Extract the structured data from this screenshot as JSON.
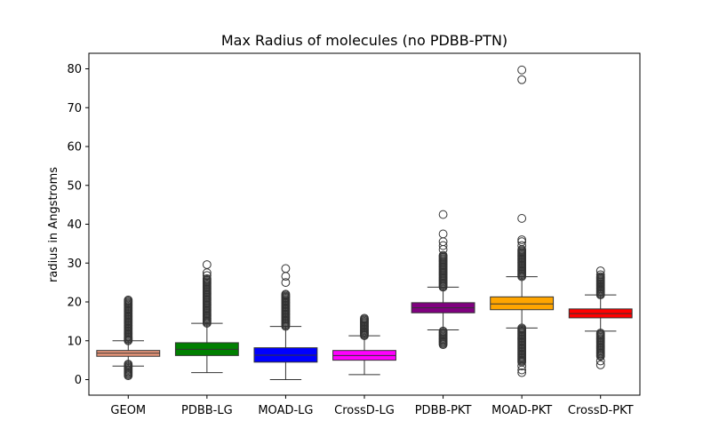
{
  "chart_data": {
    "type": "box",
    "title": "Max Radius of molecules (no PDBB-PTN)",
    "xlabel": "",
    "ylabel": "radius in Angstroms",
    "ylim": [
      -4,
      84
    ],
    "yticks": [
      0,
      10,
      20,
      30,
      40,
      50,
      60,
      70,
      80
    ],
    "grid": false,
    "categories": [
      "GEOM",
      "PDBB-LG",
      "MOAD-LG",
      "CrossD-LG",
      "PDBB-PKT",
      "MOAD-PKT",
      "CrossD-PKT"
    ],
    "boxes": [
      {
        "name": "GEOM",
        "color": "#e9967a",
        "whisker_low": 3.5,
        "q1": 6.0,
        "median": 6.8,
        "q3": 7.5,
        "whisker_high": 10.0,
        "outlier_ranges": [
          [
            1.0,
            4.0
          ],
          [
            10.0,
            20.5
          ]
        ],
        "outliers": []
      },
      {
        "name": "PDBB-LG",
        "color": "#008000",
        "whisker_low": 1.8,
        "q1": 6.2,
        "median": 7.8,
        "q3": 9.5,
        "whisker_high": 14.5,
        "outlier_ranges": [
          [
            14.5,
            26.0
          ]
        ],
        "outliers": [
          26.8,
          27.5,
          29.6
        ]
      },
      {
        "name": "MOAD-LG",
        "color": "#0000ff",
        "whisker_low": 0.0,
        "q1": 4.5,
        "median": 6.3,
        "q3": 8.2,
        "whisker_high": 13.7,
        "outlier_ranges": [
          [
            13.7,
            22.0
          ]
        ],
        "outliers": [
          25.0,
          26.6,
          28.6
        ]
      },
      {
        "name": "CrossD-LG",
        "color": "#ff00ff",
        "whisker_low": 1.3,
        "q1": 5.0,
        "median": 6.2,
        "q3": 7.5,
        "whisker_high": 11.3,
        "outlier_ranges": [
          [
            11.3,
            15.8
          ]
        ],
        "outliers": []
      },
      {
        "name": "PDBB-PKT",
        "color": "#800080",
        "whisker_low": 12.8,
        "q1": 17.2,
        "median": 18.5,
        "q3": 19.8,
        "whisker_high": 23.8,
        "outlier_ranges": [
          [
            9.0,
            12.5
          ],
          [
            23.8,
            32.0
          ]
        ],
        "outliers": [
          33.5,
          34.5,
          35.5,
          37.5,
          42.5
        ]
      },
      {
        "name": "MOAD-PKT",
        "color": "#ffa500",
        "whisker_low": 13.3,
        "q1": 18.0,
        "median": 19.5,
        "q3": 21.3,
        "whisker_high": 26.5,
        "outlier_ranges": [
          [
            4.5,
            13.3
          ],
          [
            26.5,
            33.5
          ]
        ],
        "outliers": [
          1.8,
          2.5,
          3.5,
          34.5,
          35.5,
          36.0,
          41.5,
          77.2,
          79.7
        ]
      },
      {
        "name": "CrossD-PKT",
        "color": "#ff0000",
        "whisker_low": 12.5,
        "q1": 15.9,
        "median": 17.0,
        "q3": 18.2,
        "whisker_high": 21.8,
        "outlier_ranges": [
          [
            6.0,
            12.0
          ],
          [
            21.8,
            26.5
          ]
        ],
        "outliers": [
          3.8,
          4.8,
          27.0,
          28.0
        ]
      }
    ]
  }
}
